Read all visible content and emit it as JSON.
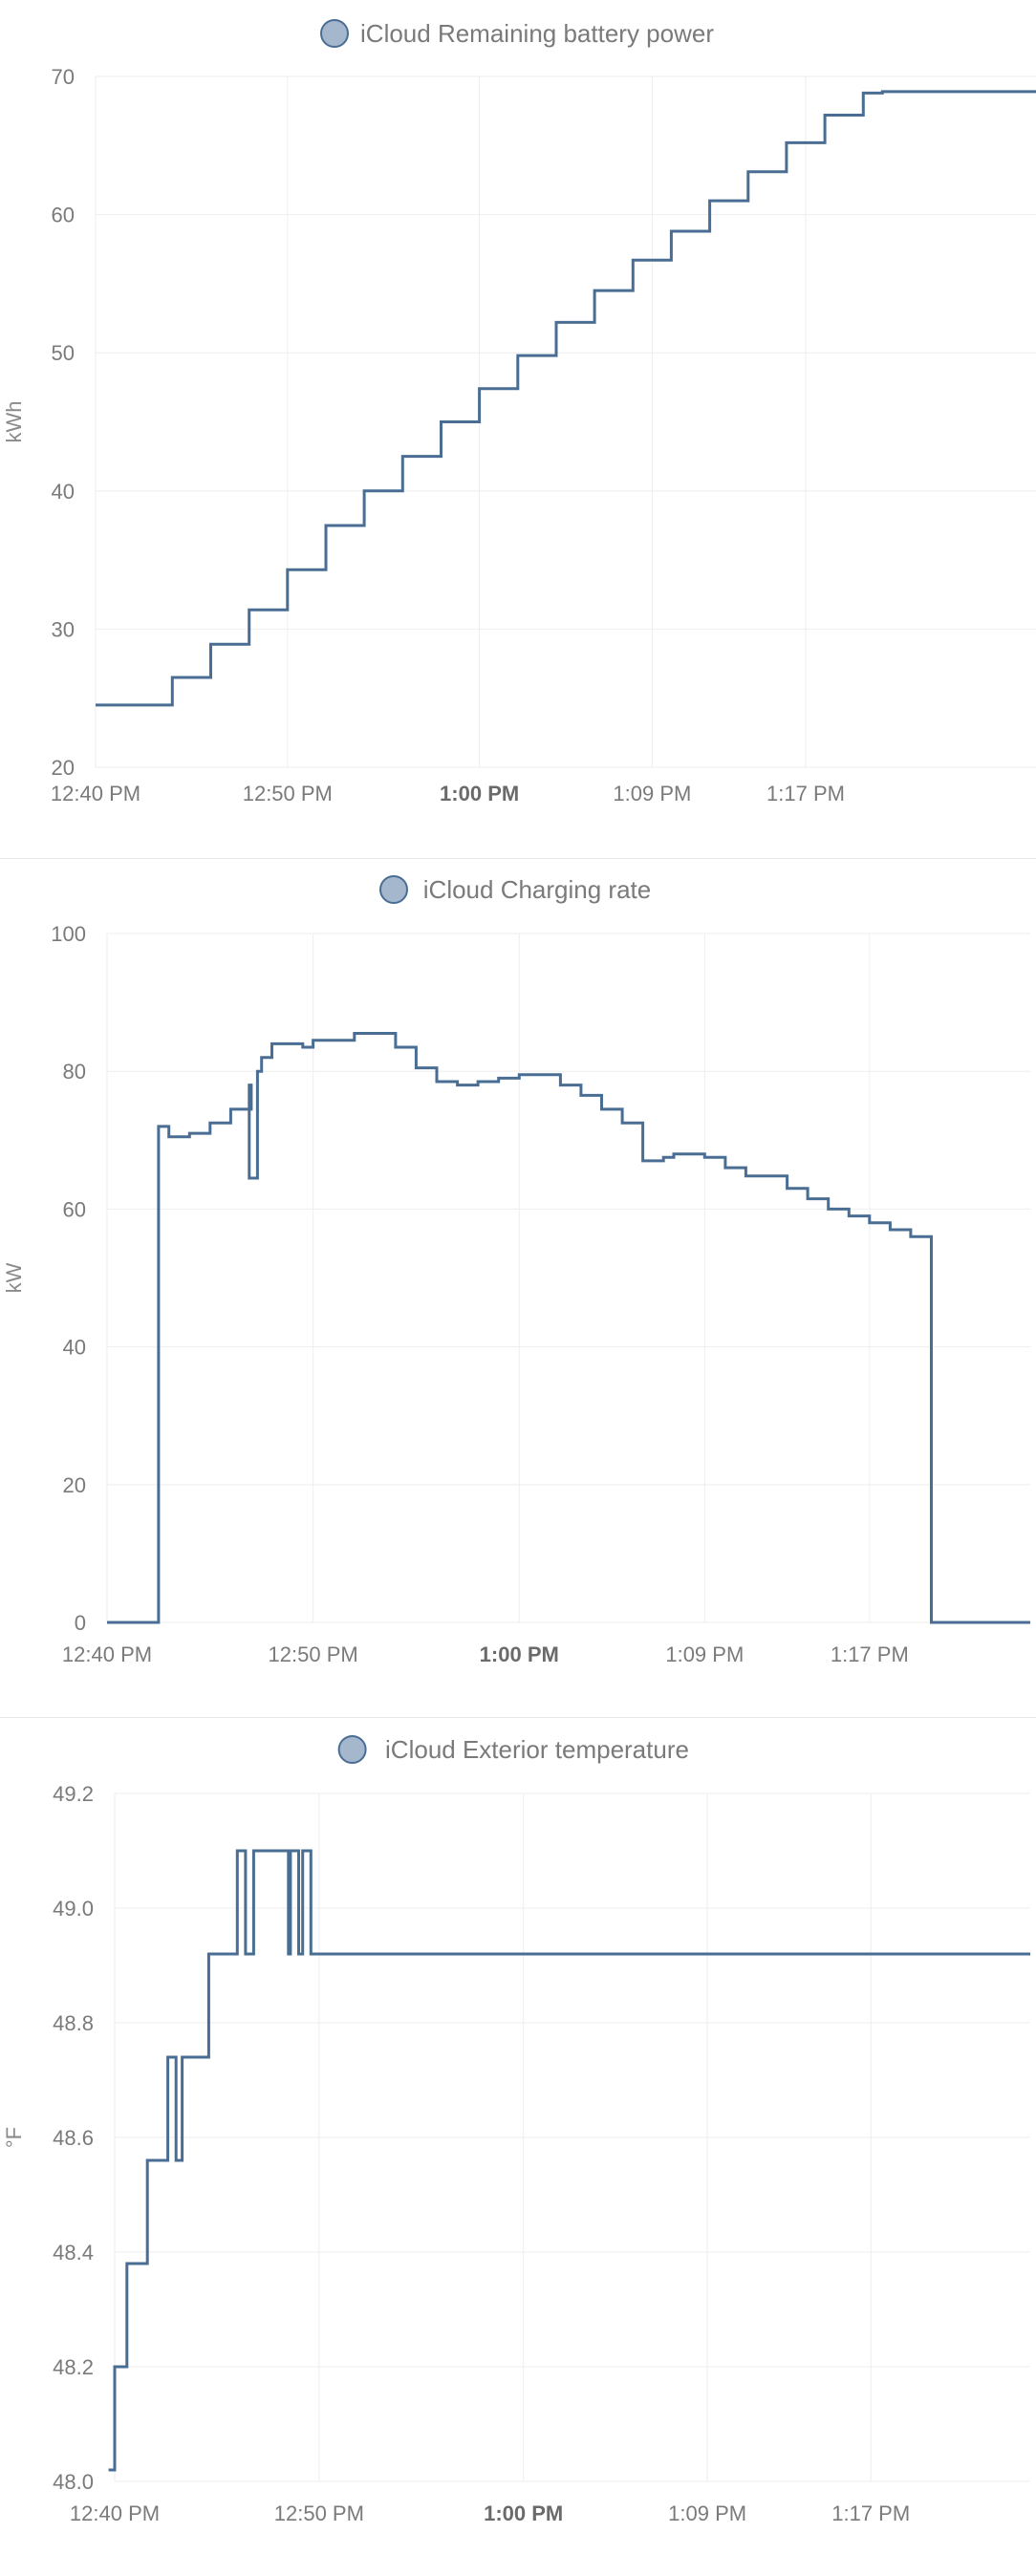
{
  "colors": {
    "series": "#4a6e93",
    "legend_dot_fill": "#a4b7cc",
    "legend_dot_stroke": "#4a6e93"
  },
  "chart_data": [
    {
      "type": "line",
      "step": true,
      "title": "",
      "legend": "iCloud Remaining battery power",
      "ylabel": "kWh",
      "ylim": [
        20,
        70
      ],
      "yticks": [
        20,
        30,
        40,
        50,
        60,
        70
      ],
      "xlim": [
        0,
        49
      ],
      "xticks": [
        {
          "t": 0,
          "label": "12:40 PM",
          "bold": false
        },
        {
          "t": 10,
          "label": "12:50 PM",
          "bold": false
        },
        {
          "t": 20,
          "label": "1:00 PM",
          "bold": true
        },
        {
          "t": 29,
          "label": "1:09 PM",
          "bold": false
        },
        {
          "t": 37,
          "label": "1:17 PM",
          "bold": false
        }
      ],
      "series": [
        {
          "name": "iCloud Remaining battery power",
          "x": [
            0,
            2,
            4,
            6,
            8,
            10,
            12,
            14,
            16,
            18,
            20,
            22,
            24,
            26,
            28,
            30,
            32,
            34,
            36,
            38,
            40,
            41,
            45,
            49
          ],
          "y": [
            24.5,
            24.5,
            26.5,
            28.9,
            31.4,
            34.3,
            37.5,
            40.0,
            42.5,
            45.0,
            47.4,
            49.8,
            52.2,
            54.5,
            56.7,
            58.8,
            61.0,
            63.1,
            65.2,
            67.2,
            68.8,
            68.9,
            68.9,
            68.8
          ]
        }
      ]
    },
    {
      "type": "line",
      "step": true,
      "title": "",
      "legend": "iCloud Charging rate",
      "ylabel": "kW",
      "ylim": [
        0,
        100
      ],
      "yticks": [
        0,
        20,
        40,
        60,
        80,
        100
      ],
      "xlim": [
        0,
        44.8
      ],
      "xticks": [
        {
          "t": 0,
          "label": "12:40 PM",
          "bold": false
        },
        {
          "t": 10,
          "label": "12:50 PM",
          "bold": false
        },
        {
          "t": 20,
          "label": "1:00 PM",
          "bold": true
        },
        {
          "t": 29,
          "label": "1:09 PM",
          "bold": false
        },
        {
          "t": 37,
          "label": "1:17 PM",
          "bold": false
        }
      ],
      "series": [
        {
          "name": "iCloud Charging rate",
          "x": [
            0,
            2,
            2.5,
            3,
            4,
            5,
            6,
            7,
            6.9,
            7.0,
            7.3,
            7.5,
            8,
            9,
            9.5,
            10,
            12,
            13,
            14,
            15,
            16,
            17,
            18,
            19,
            20,
            21,
            22,
            23,
            24,
            25,
            26,
            27,
            27.5,
            28,
            29,
            30,
            31,
            32,
            33,
            34,
            35,
            36,
            37,
            38,
            39,
            40,
            40.5,
            41,
            44.8
          ],
          "y": [
            0,
            0,
            72,
            70.5,
            71,
            72.5,
            74.5,
            78,
            64.5,
            64.5,
            80,
            82,
            84,
            84,
            83.5,
            84.5,
            85.5,
            85.5,
            83.5,
            80.5,
            78.5,
            78,
            78.5,
            79,
            79.5,
            79.5,
            78,
            76.5,
            74.5,
            72.5,
            67,
            67.5,
            68,
            68,
            67.5,
            66,
            64.8,
            64.8,
            63,
            61.5,
            60,
            59,
            58,
            57,
            56,
            0,
            0,
            0,
            0
          ]
        }
      ]
    },
    {
      "type": "line",
      "step": true,
      "title": "",
      "legend": "iCloud Exterior temperature",
      "ylabel": "°F",
      "ylim": [
        48.0,
        49.2
      ],
      "yticks": [
        48.0,
        48.2,
        48.4,
        48.6,
        48.8,
        49.0,
        49.2
      ],
      "yticklabels": [
        "48.0",
        "48.2",
        "48.4",
        "48.6",
        "48.8",
        "49.0",
        "49.2"
      ],
      "xlim": [
        0,
        44.8
      ],
      "xticks": [
        {
          "t": 0,
          "label": "12:40 PM",
          "bold": false
        },
        {
          "t": 10,
          "label": "12:50 PM",
          "bold": false
        },
        {
          "t": 20,
          "label": "1:00 PM",
          "bold": true
        },
        {
          "t": 29,
          "label": "1:09 PM",
          "bold": false
        },
        {
          "t": 37,
          "label": "1:17 PM",
          "bold": false
        }
      ],
      "series": [
        {
          "name": "iCloud Exterior temperature",
          "x": [
            -0.3,
            0,
            0.6,
            1.6,
            2.6,
            3.0,
            3.3,
            3.6,
            4.6,
            5.0,
            6.0,
            6.4,
            6.8,
            7.0,
            8.5,
            8.6,
            9.0,
            9.2,
            9.6,
            10.0,
            44.8
          ],
          "y": [
            48.02,
            48.2,
            48.38,
            48.56,
            48.74,
            48.56,
            48.74,
            48.74,
            48.92,
            48.92,
            49.1,
            48.92,
            49.1,
            49.1,
            48.92,
            49.1,
            48.92,
            49.1,
            48.92,
            48.92,
            48.92
          ]
        }
      ]
    }
  ]
}
